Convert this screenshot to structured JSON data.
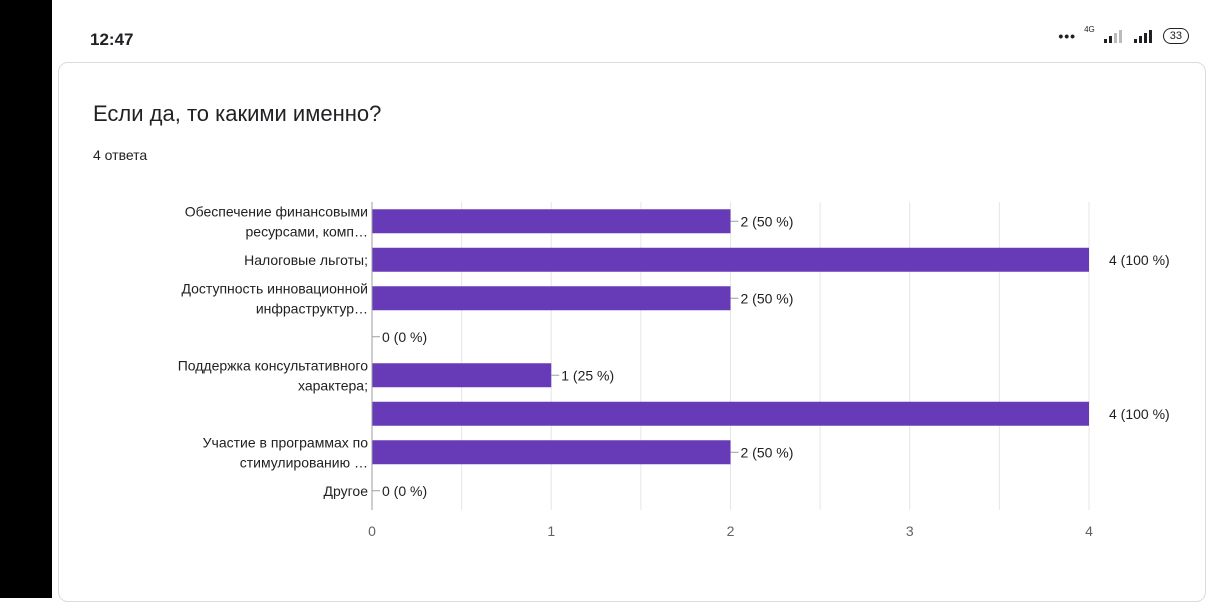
{
  "status": {
    "time": "12:47",
    "dots": "•••",
    "network": "4G",
    "battery": "33"
  },
  "question": {
    "title": "Если да, то какими именно?",
    "responses": "4 ответа"
  },
  "colors": {
    "bar": "#673ab7",
    "grid": "#e6e6e6",
    "text": "#202124"
  },
  "chart_data": {
    "type": "bar",
    "orientation": "horizontal",
    "categories": [
      [
        "Обеспечение финансовыми",
        "ресурсами, комп…"
      ],
      [
        "Налоговые льготы;"
      ],
      [
        "Доступность инновационной",
        "инфраструктур…"
      ],
      [],
      [
        "Поддержка консультативного",
        "характера;"
      ],
      [],
      [
        "Участие в программах по",
        "стимулированию …"
      ],
      [
        "Другое"
      ]
    ],
    "values": [
      2,
      4,
      2,
      0,
      1,
      4,
      2,
      0
    ],
    "data_labels": [
      "2 (50 %)",
      "4 (100 %)",
      "2 (50 %)",
      "0 (0 %)",
      "1 (25 %)",
      "4 (100 %)",
      "2 (50 %)",
      "0 (0 %)"
    ],
    "xlim": [
      0,
      4
    ],
    "xticks": [
      "0",
      "1",
      "2",
      "3",
      "4"
    ],
    "grid": true
  }
}
